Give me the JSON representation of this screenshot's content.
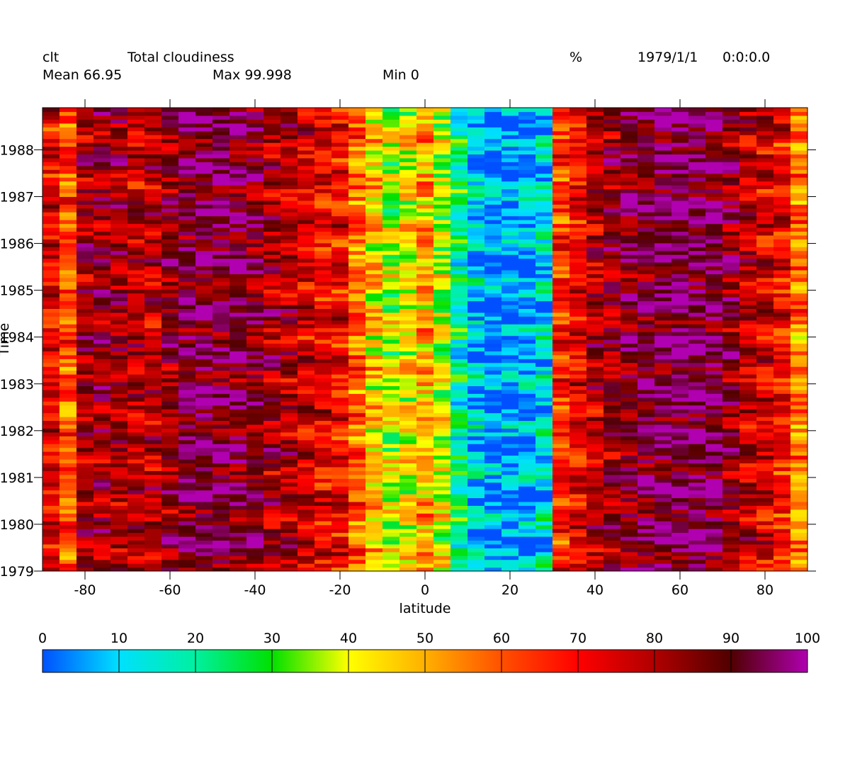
{
  "header": {
    "var_name": "clt",
    "long_name": "Total cloudiness",
    "units": "%",
    "date": "1979/1/1",
    "time": "0:0:0.0",
    "mean_label": "Mean 66.95",
    "max_label": "Max 99.998",
    "min_label": "Min 0"
  },
  "chart_data": {
    "type": "heatmap",
    "title": "Total cloudiness",
    "xlabel": "latitude",
    "ylabel": "Time",
    "xlim": [
      -90,
      90
    ],
    "ylim": [
      1979,
      1988.9
    ],
    "x_ticks": [
      -80,
      -60,
      -40,
      -20,
      0,
      20,
      40,
      60,
      80
    ],
    "y_ticks": [
      1979,
      1980,
      1981,
      1982,
      1983,
      1984,
      1985,
      1986,
      1987,
      1988
    ],
    "x_centers": [
      -88,
      -84,
      -80,
      -76,
      -72,
      -68,
      -64,
      -60,
      -56,
      -52,
      -48,
      -44,
      -40,
      -36,
      -32,
      -28,
      -24,
      -20,
      -16,
      -12,
      -8,
      -4,
      0,
      4,
      8,
      12,
      16,
      20,
      24,
      28,
      32,
      36,
      40,
      44,
      48,
      52,
      56,
      60,
      64,
      68,
      72,
      76,
      80,
      84,
      88
    ],
    "zonal_mean_profile": [
      72,
      60,
      82,
      84,
      82,
      78,
      80,
      85,
      92,
      93,
      92,
      90,
      88,
      82,
      80,
      75,
      72,
      70,
      58,
      46,
      36,
      42,
      50,
      38,
      20,
      10,
      4,
      5,
      6,
      12,
      65,
      72,
      80,
      84,
      88,
      92,
      94,
      95,
      94,
      93,
      85,
      78,
      75,
      70,
      55
    ],
    "time_range": [
      "1979/1/1",
      "1988/12"
    ],
    "time_steps": 120,
    "colorbar": {
      "min": 0,
      "max": 100,
      "ticks": [
        0,
        10,
        20,
        30,
        40,
        50,
        60,
        70,
        80,
        90,
        100
      ],
      "colors": [
        "#0050ff",
        "#00e0ff",
        "#00f0a0",
        "#00e000",
        "#ffff00",
        "#ffb000",
        "#ff5000",
        "#ff0000",
        "#b00000",
        "#500000",
        "#b000b0"
      ]
    },
    "statistics": {
      "mean": 66.95,
      "max": 99.998,
      "min": 0
    }
  }
}
